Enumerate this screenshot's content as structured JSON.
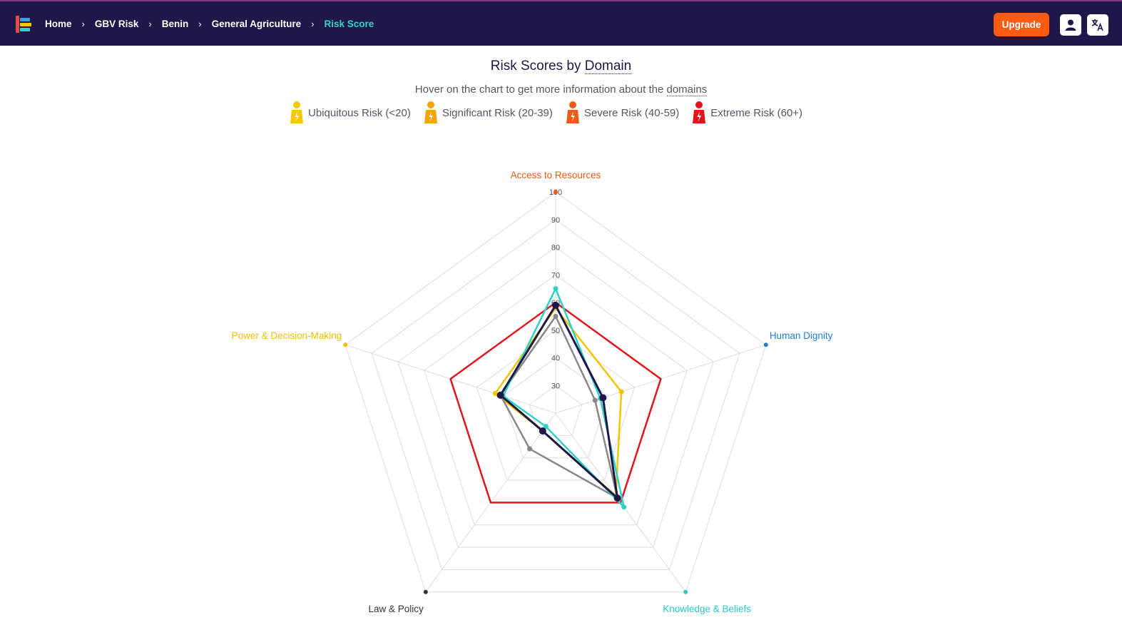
{
  "nav": {
    "breadcrumbs": [
      {
        "label": "Home"
      },
      {
        "label": "GBV Risk"
      },
      {
        "label": "Benin"
      },
      {
        "label": "General Agriculture"
      },
      {
        "label": "Risk Score",
        "current": true
      }
    ],
    "upgrade_label": "Upgrade",
    "icons": [
      "user-icon",
      "translate-icon"
    ]
  },
  "header": {
    "title_prefix": "Risk Scores by",
    "title_link": "Domain",
    "subtitle_prefix": "Hover on the chart to get more information about the",
    "subtitle_link": "domains"
  },
  "legend": [
    {
      "label": "Ubiquitous Risk (<20)",
      "color": "#f7c800"
    },
    {
      "label": "Significant Risk (20-39)",
      "color": "#f5a300"
    },
    {
      "label": "Severe Risk (40-59)",
      "color": "#f05a14"
    },
    {
      "label": "Extreme Risk (60+)",
      "color": "#e2141e"
    }
  ],
  "chart_data": {
    "type": "radar",
    "axes": [
      {
        "label": "Access to Resources",
        "color": "#f05a14"
      },
      {
        "label": "Human Dignity",
        "color": "#1f7fcf"
      },
      {
        "label": "Knowledge & Beliefs",
        "color": "#2fc8c0"
      },
      {
        "label": "Law & Policy",
        "color": "#333344"
      },
      {
        "label": "Power & Decision-Making",
        "color": "#f0c000"
      }
    ],
    "range": [
      20,
      100
    ],
    "ticks": [
      30,
      40,
      50,
      60,
      70,
      80,
      90,
      100
    ],
    "series": [
      {
        "color": "#e2141e",
        "values": [
          60,
          60,
          60,
          60,
          60
        ],
        "markers": false
      },
      {
        "color": "#f5c400",
        "values": [
          58,
          45,
          57,
          28,
          43
        ],
        "markers": true
      },
      {
        "color": "#888888",
        "values": [
          55,
          35,
          58,
          36,
          41
        ],
        "markers": true
      },
      {
        "color": "#2fd0c8",
        "values": [
          65,
          37,
          62,
          26,
          40
        ],
        "markers": true
      },
      {
        "color": "#1f1748",
        "values": [
          59,
          38,
          58,
          28,
          41
        ],
        "markers": true
      }
    ]
  }
}
